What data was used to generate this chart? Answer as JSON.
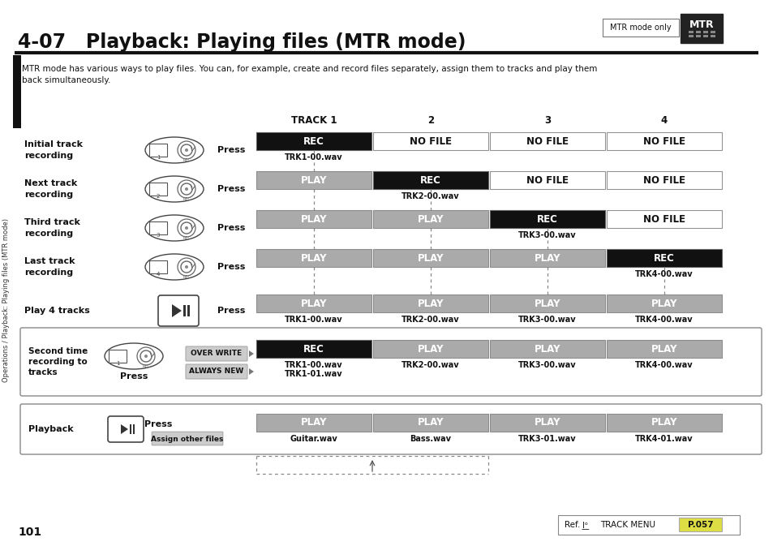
{
  "title": "4-07   Playback: Playing files (MTR mode)",
  "page_number": "101",
  "bg_color": "#ffffff",
  "description": "MTR mode has various ways to play files. You can, for example, create and record files separately, assign them to tracks and play them\nback simultaneously.",
  "track_headers": [
    "TRACK 1",
    "2",
    "3",
    "4"
  ],
  "rows": [
    {
      "label": "Initial track\nrecording",
      "button_num": "1",
      "button_type": "rec",
      "cells": [
        {
          "text": "REC",
          "type": "rec"
        },
        {
          "text": "NO FILE",
          "type": "nofile"
        },
        {
          "text": "NO FILE",
          "type": "nofile"
        },
        {
          "text": "NO FILE",
          "type": "nofile"
        }
      ],
      "subtext": [
        "TRK1-00.wav",
        "",
        "",
        ""
      ]
    },
    {
      "label": "Next track\nrecording",
      "button_num": "2",
      "button_type": "rec",
      "cells": [
        {
          "text": "PLAY",
          "type": "play"
        },
        {
          "text": "REC",
          "type": "rec"
        },
        {
          "text": "NO FILE",
          "type": "nofile"
        },
        {
          "text": "NO FILE",
          "type": "nofile"
        }
      ],
      "subtext": [
        "",
        "TRK2-00.wav",
        "",
        ""
      ]
    },
    {
      "label": "Third track\nrecording",
      "button_num": "3",
      "button_type": "rec",
      "cells": [
        {
          "text": "PLAY",
          "type": "play"
        },
        {
          "text": "PLAY",
          "type": "play"
        },
        {
          "text": "REC",
          "type": "rec"
        },
        {
          "text": "NO FILE",
          "type": "nofile"
        }
      ],
      "subtext": [
        "",
        "",
        "TRK3-00.wav",
        ""
      ]
    },
    {
      "label": "Last track\nrecording",
      "button_num": "4",
      "button_type": "rec",
      "cells": [
        {
          "text": "PLAY",
          "type": "play"
        },
        {
          "text": "PLAY",
          "type": "play"
        },
        {
          "text": "PLAY",
          "type": "play"
        },
        {
          "text": "REC",
          "type": "rec"
        }
      ],
      "subtext": [
        "",
        "",
        "",
        "TRK4-00.wav"
      ]
    },
    {
      "label": "Play 4 tracks",
      "button_num": "play",
      "button_type": "play",
      "cells": [
        {
          "text": "PLAY",
          "type": "play"
        },
        {
          "text": "PLAY",
          "type": "play"
        },
        {
          "text": "PLAY",
          "type": "play"
        },
        {
          "text": "PLAY",
          "type": "play"
        }
      ],
      "subtext": [
        "TRK1-00.wav",
        "TRK2-00.wav",
        "TRK3-00.wav",
        "TRK4-00.wav"
      ]
    }
  ],
  "second_box": {
    "label": "Second time\nrecording to\ntracks",
    "button_num": "1",
    "cells": [
      {
        "text": "REC",
        "type": "rec"
      },
      {
        "text": "PLAY",
        "type": "play"
      },
      {
        "text": "PLAY",
        "type": "play"
      },
      {
        "text": "PLAY",
        "type": "play"
      }
    ],
    "subtext1": [
      "TRK1-00.wav",
      "TRK2-00.wav",
      "TRK3-00.wav",
      "TRK4-00.wav"
    ],
    "subtext2": [
      "TRK1-01.wav",
      "",
      "",
      ""
    ],
    "options": [
      "OVER WRITE",
      "ALWAYS NEW"
    ]
  },
  "playback_box": {
    "label": "Playback",
    "cells": [
      {
        "text": "PLAY",
        "type": "play"
      },
      {
        "text": "PLAY",
        "type": "play"
      },
      {
        "text": "PLAY",
        "type": "play"
      },
      {
        "text": "PLAY",
        "type": "play"
      }
    ],
    "subtext": [
      "Guitar.wav",
      "Bass.wav",
      "TRK3-01.wav",
      "TRK4-01.wav"
    ],
    "assign_label": "Assign other files"
  },
  "ref_text": "Ref.",
  "ref_menu": "TRACK MENU",
  "ref_page": "P.057",
  "sidebar_text": "Operations / Playback: Playing files (MTR mode)",
  "mtr_label": "MTR mode only"
}
